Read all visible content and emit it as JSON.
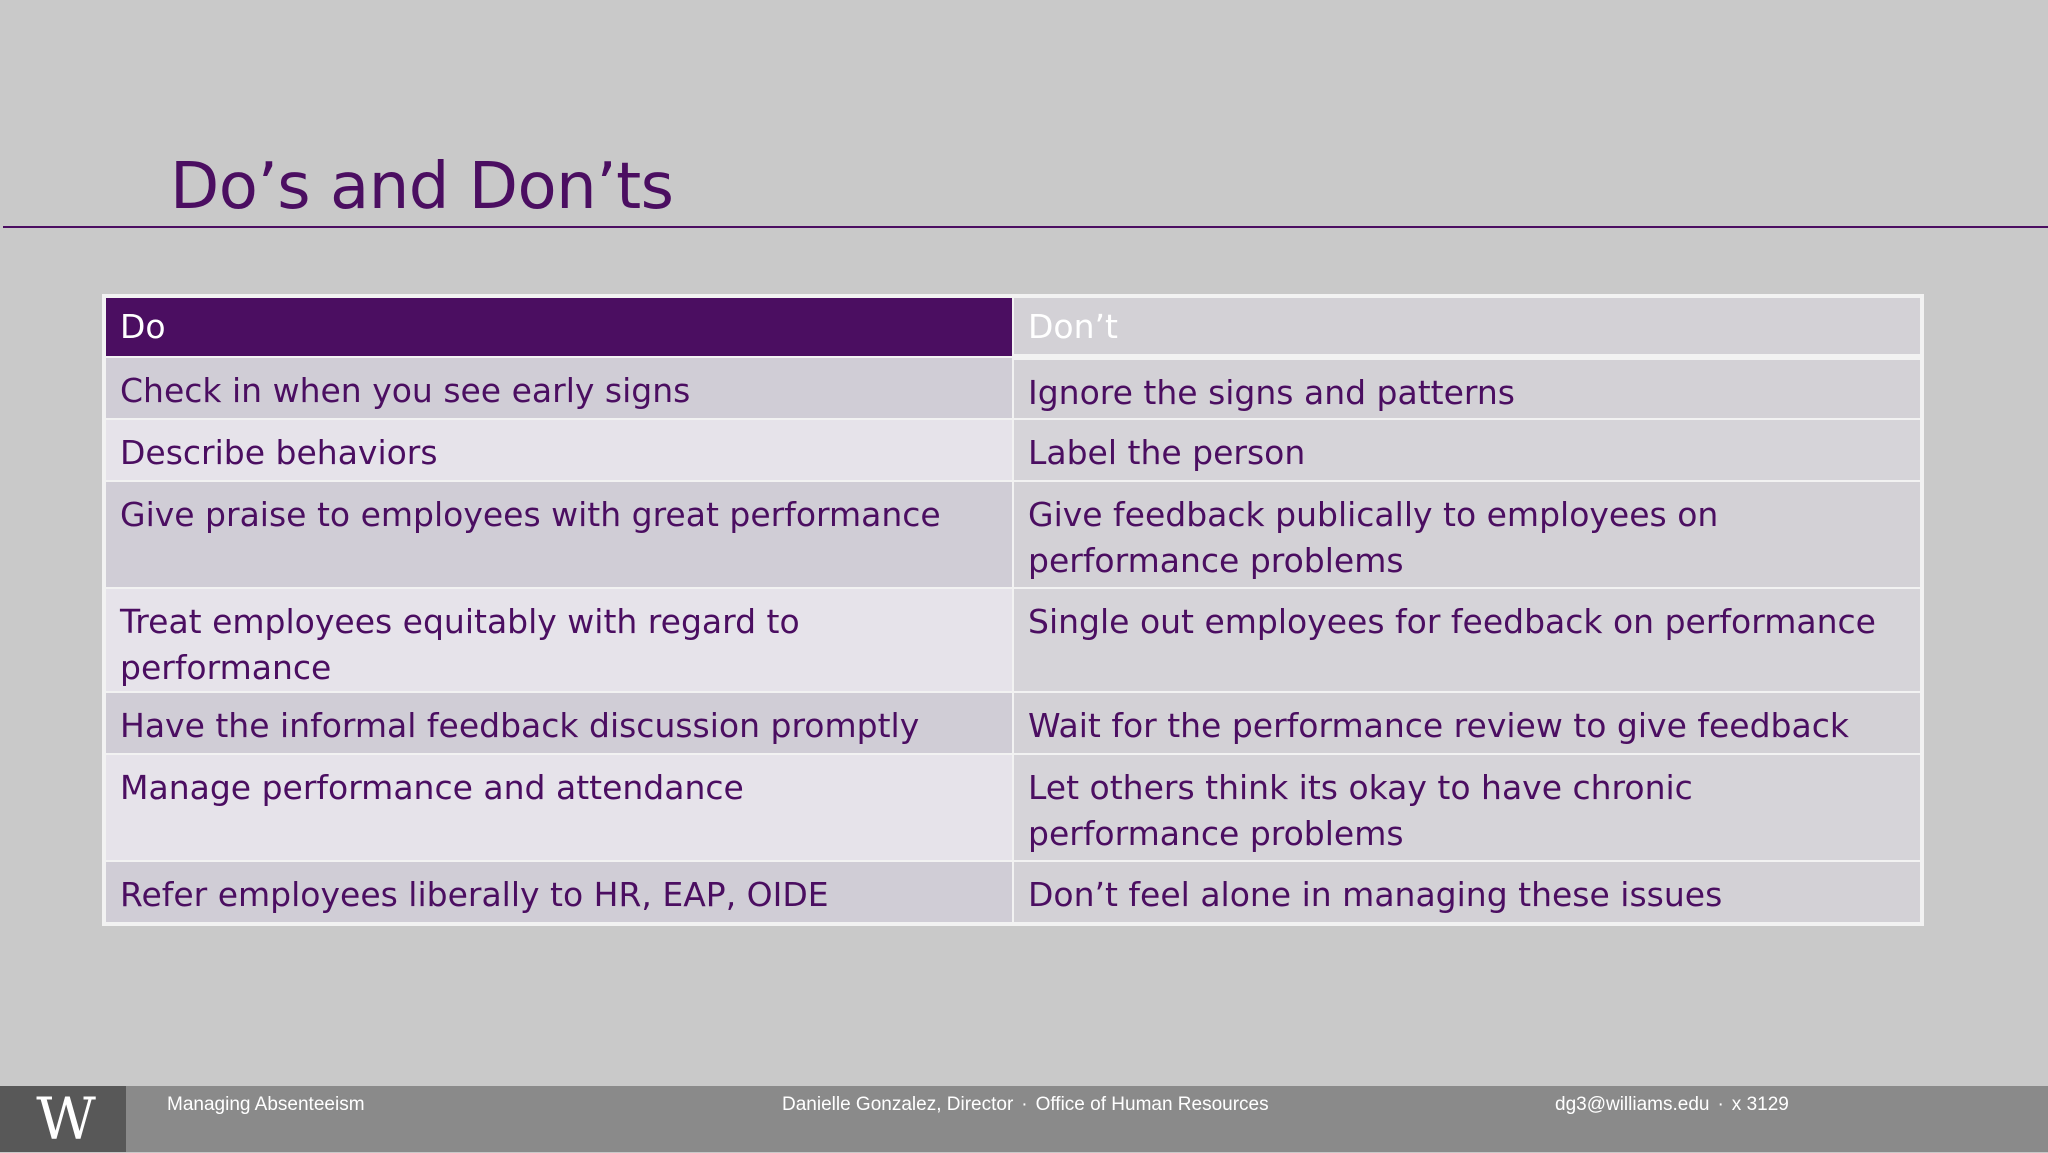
{
  "slide": {
    "title": "Do’s and Don’ts"
  },
  "table": {
    "headers": {
      "do": "Do",
      "dont": "Don’t"
    },
    "rows": [
      {
        "do": "Check in when you see early signs",
        "dont": "Ignore the signs and patterns"
      },
      {
        "do": "Describe behaviors",
        "dont": "Label the person"
      },
      {
        "do": "Give praise to employees with great performance",
        "dont": "Give feedback publically to employees on performance problems"
      },
      {
        "do": "Treat employees equitably with regard to performance",
        "dont": "Single out employees for feedback on performance"
      },
      {
        "do": "Have the informal feedback discussion promptly",
        "dont": "Wait for the performance review to give feedback"
      },
      {
        "do": "Manage performance and attendance",
        "dont": "Let others think its okay to have chronic performance problems"
      },
      {
        "do": "Refer employees liberally to HR, EAP, OIDE",
        "dont": "Don’t feel alone in managing these issues"
      }
    ]
  },
  "footer": {
    "logo_letter": "W",
    "presentation_title": "Managing Absenteeism",
    "presenter": "Danielle Gonzalez, Director",
    "separator": "·",
    "office": "Office of Human Resources",
    "email": "dg3@williams.edu",
    "extension": "x 3129"
  },
  "colors": {
    "accent_purple": "#4b0e61",
    "background": "#c9c9c9",
    "footer_bar": "#8a8a8a",
    "logo_box": "#585858"
  }
}
